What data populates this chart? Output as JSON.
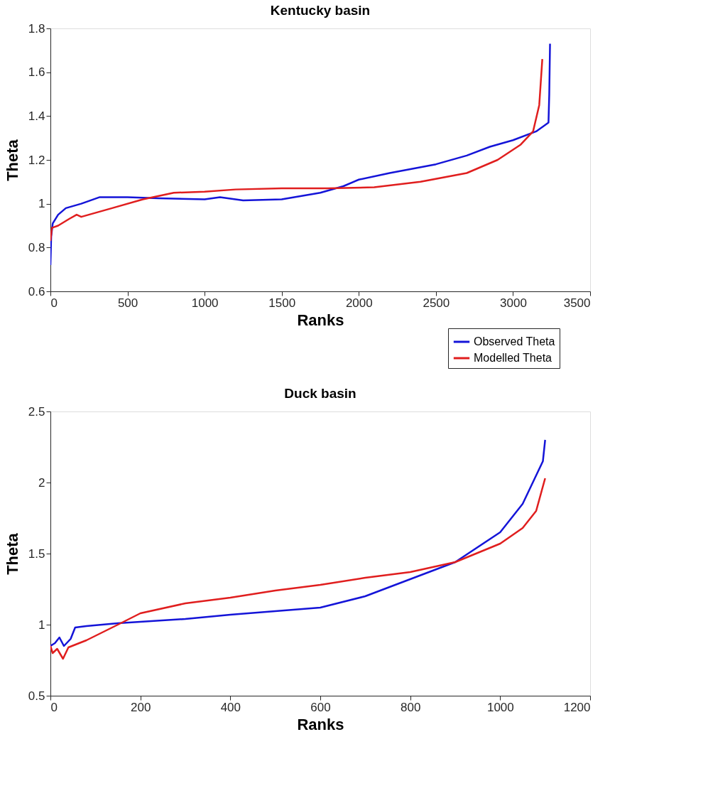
{
  "chart_data": [
    {
      "type": "line",
      "title": "Kentucky basin",
      "xlabel": "Ranks",
      "ylabel": "Theta",
      "xlim": [
        0,
        3500
      ],
      "ylim": [
        0.6,
        1.8
      ],
      "xticks": [
        0,
        500,
        1000,
        1500,
        2000,
        2500,
        3000,
        3500
      ],
      "yticks": [
        0.6,
        0.8,
        1,
        1.2,
        1.4,
        1.6,
        1.8
      ],
      "grid": false,
      "legend": "bottom right",
      "series": [
        {
          "name": "Observed Theta",
          "color": "#1414d8",
          "x": [
            0,
            5,
            15,
            50,
            100,
            200,
            320,
            500,
            700,
            1000,
            1100,
            1250,
            1500,
            1750,
            1900,
            2000,
            2200,
            2500,
            2700,
            2850,
            3000,
            3150,
            3230,
            3235,
            3240
          ],
          "values": [
            0.72,
            0.85,
            0.91,
            0.95,
            0.98,
            1.0,
            1.03,
            1.03,
            1.025,
            1.02,
            1.03,
            1.015,
            1.02,
            1.05,
            1.08,
            1.11,
            1.14,
            1.18,
            1.22,
            1.26,
            1.29,
            1.33,
            1.37,
            1.5,
            1.73
          ]
        },
        {
          "name": "Modelled Theta",
          "color": "#e01e1e",
          "x": [
            0,
            10,
            50,
            120,
            170,
            200,
            400,
            600,
            800,
            1000,
            1200,
            1500,
            1800,
            2100,
            2400,
            2700,
            2900,
            3050,
            3130,
            3170,
            3190
          ],
          "values": [
            0.83,
            0.89,
            0.9,
            0.93,
            0.95,
            0.94,
            0.98,
            1.02,
            1.05,
            1.055,
            1.065,
            1.07,
            1.07,
            1.075,
            1.1,
            1.14,
            1.2,
            1.27,
            1.33,
            1.45,
            1.66
          ]
        }
      ]
    },
    {
      "type": "line",
      "title": "Duck basin",
      "xlabel": "Ranks",
      "ylabel": "Theta",
      "xlim": [
        0,
        1200
      ],
      "ylim": [
        0.5,
        2.5
      ],
      "xticks": [
        0,
        200,
        400,
        600,
        800,
        1000,
        1200
      ],
      "yticks": [
        0.5,
        1,
        1.5,
        2,
        2.5
      ],
      "grid": false,
      "series": [
        {
          "color": "#1414d8",
          "x": [
            0,
            10,
            20,
            30,
            45,
            55,
            80,
            150,
            300,
            400,
            600,
            700,
            800,
            900,
            1000,
            1050,
            1080,
            1095,
            1100
          ],
          "values": [
            0.85,
            0.87,
            0.91,
            0.85,
            0.9,
            0.98,
            0.99,
            1.01,
            1.04,
            1.07,
            1.12,
            1.2,
            1.32,
            1.44,
            1.65,
            1.85,
            2.05,
            2.15,
            2.3
          ]
        },
        {
          "color": "#e01e1e",
          "x": [
            0,
            5,
            15,
            28,
            40,
            80,
            150,
            200,
            300,
            400,
            500,
            600,
            700,
            800,
            900,
            1000,
            1050,
            1080,
            1100
          ],
          "values": [
            0.85,
            0.8,
            0.83,
            0.76,
            0.84,
            0.89,
            1.0,
            1.08,
            1.15,
            1.19,
            1.24,
            1.28,
            1.33,
            1.37,
            1.44,
            1.57,
            1.68,
            1.8,
            2.03
          ]
        }
      ]
    }
  ]
}
